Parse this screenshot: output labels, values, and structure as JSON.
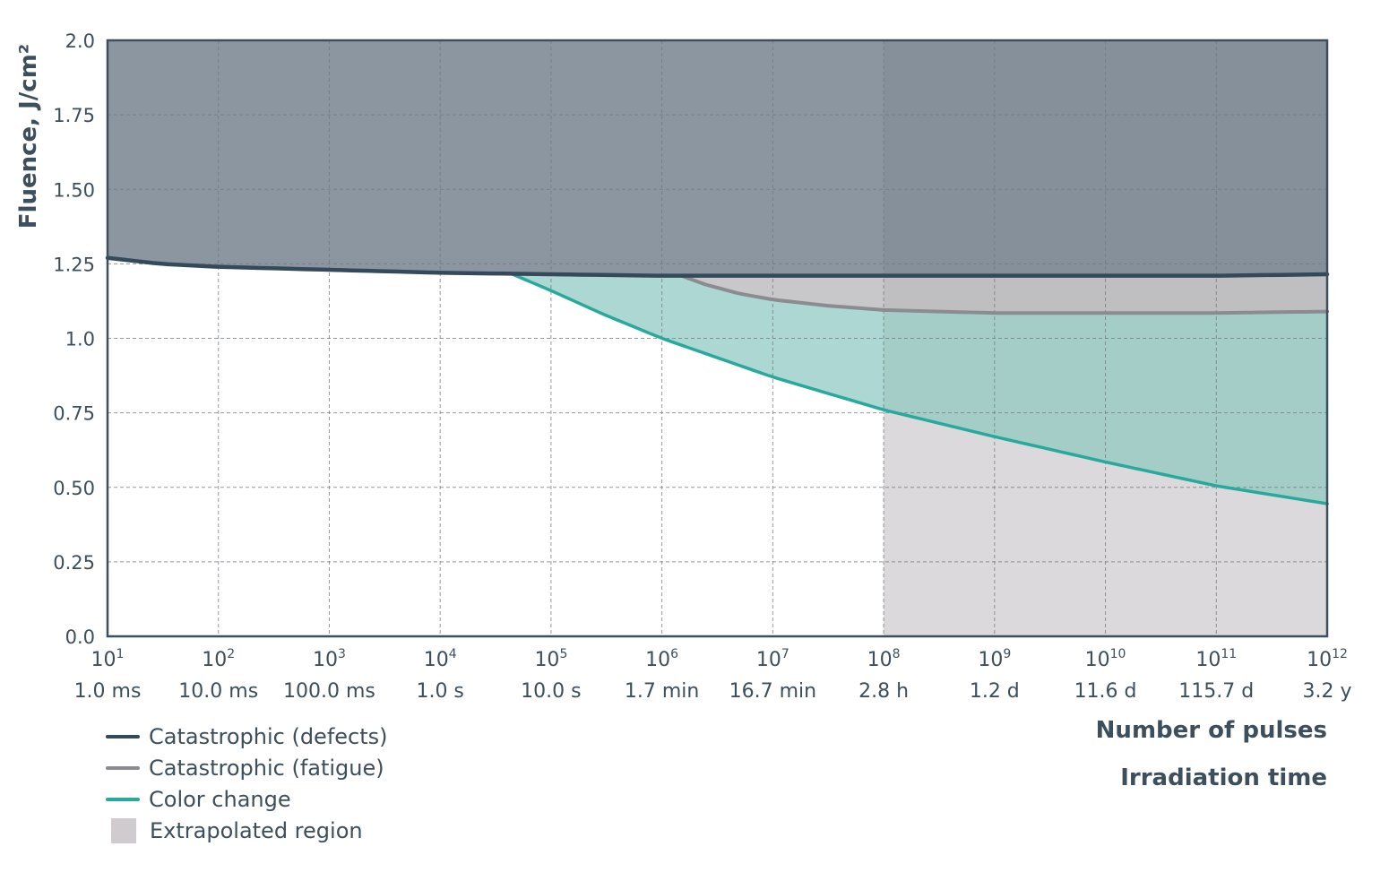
{
  "chart_data": {
    "type": "area",
    "xlabel": "Number of pulses",
    "xlabel2": "Irradiation time",
    "ylabel": "Fluence, J/cm²",
    "x_log": true,
    "xlim": [
      10,
      1000000000000
    ],
    "ylim": [
      0,
      2.0
    ],
    "grid": true,
    "yticks": [
      "0.0",
      "0.25",
      "0.50",
      "0.75",
      "1.0",
      "1.25",
      "1.50",
      "1.75",
      "2.0"
    ],
    "xticks": [
      {
        "base": "10",
        "exp": "1",
        "time": "1.0 ms"
      },
      {
        "base": "10",
        "exp": "2",
        "time": "10.0 ms"
      },
      {
        "base": "10",
        "exp": "3",
        "time": "100.0 ms"
      },
      {
        "base": "10",
        "exp": "4",
        "time": "1.0 s"
      },
      {
        "base": "10",
        "exp": "5",
        "time": "10.0 s"
      },
      {
        "base": "10",
        "exp": "6",
        "time": "1.7 min"
      },
      {
        "base": "10",
        "exp": "7",
        "time": "16.7 min"
      },
      {
        "base": "10",
        "exp": "8",
        "time": "2.8 h"
      },
      {
        "base": "10",
        "exp": "9",
        "time": "1.2 d"
      },
      {
        "base": "10",
        "exp": "10",
        "time": "11.6 d"
      },
      {
        "base": "10",
        "exp": "11",
        "time": "115.7 d"
      },
      {
        "base": "10",
        "exp": "12",
        "time": "3.2 y"
      }
    ],
    "extrapolated_from_x": 100000000,
    "series": [
      {
        "name": "Catastrophic (defects)",
        "color": "#34495a",
        "x": [
          10,
          30,
          100,
          1000,
          10000,
          100000,
          1000000,
          10000000,
          100000000,
          1000000000,
          10000000000,
          100000000000,
          1000000000000
        ],
        "y": [
          1.27,
          1.25,
          1.24,
          1.23,
          1.22,
          1.215,
          1.21,
          1.21,
          1.21,
          1.21,
          1.21,
          1.21,
          1.215
        ]
      },
      {
        "name": "Catastrophic (fatigue)",
        "color": "#8a8c8f",
        "x": [
          1500000,
          2500000,
          5000000,
          10000000,
          30000000,
          100000000,
          1000000000,
          10000000000,
          100000000000,
          1000000000000
        ],
        "y": [
          1.21,
          1.18,
          1.15,
          1.13,
          1.11,
          1.095,
          1.085,
          1.085,
          1.085,
          1.09
        ]
      },
      {
        "name": "Color change",
        "color": "#27a99c",
        "x": [
          45000,
          100000,
          300000,
          1000000,
          10000000,
          100000000,
          1000000000,
          10000000000,
          100000000000,
          1000000000000
        ],
        "y": [
          1.215,
          1.16,
          1.08,
          1.0,
          0.87,
          0.76,
          0.67,
          0.585,
          0.505,
          0.445
        ]
      }
    ],
    "legend": [
      {
        "label": "Catastrophic (defects)",
        "kind": "line",
        "color": "#34495a"
      },
      {
        "label": "Catastrophic (fatigue)",
        "kind": "line",
        "color": "#8a8c8f"
      },
      {
        "label": "Color change",
        "kind": "line",
        "color": "#27a99c"
      },
      {
        "label": "Extrapolated region",
        "kind": "box",
        "color": "#cfcbce"
      }
    ],
    "region_colors": {
      "above_defects": "#8c96a1",
      "fatigue_band": "#c5c5c8",
      "color_change_band": "#a9d5d0",
      "extrapolated": "#e5e2e5",
      "axis": "#3d4f5c"
    }
  }
}
